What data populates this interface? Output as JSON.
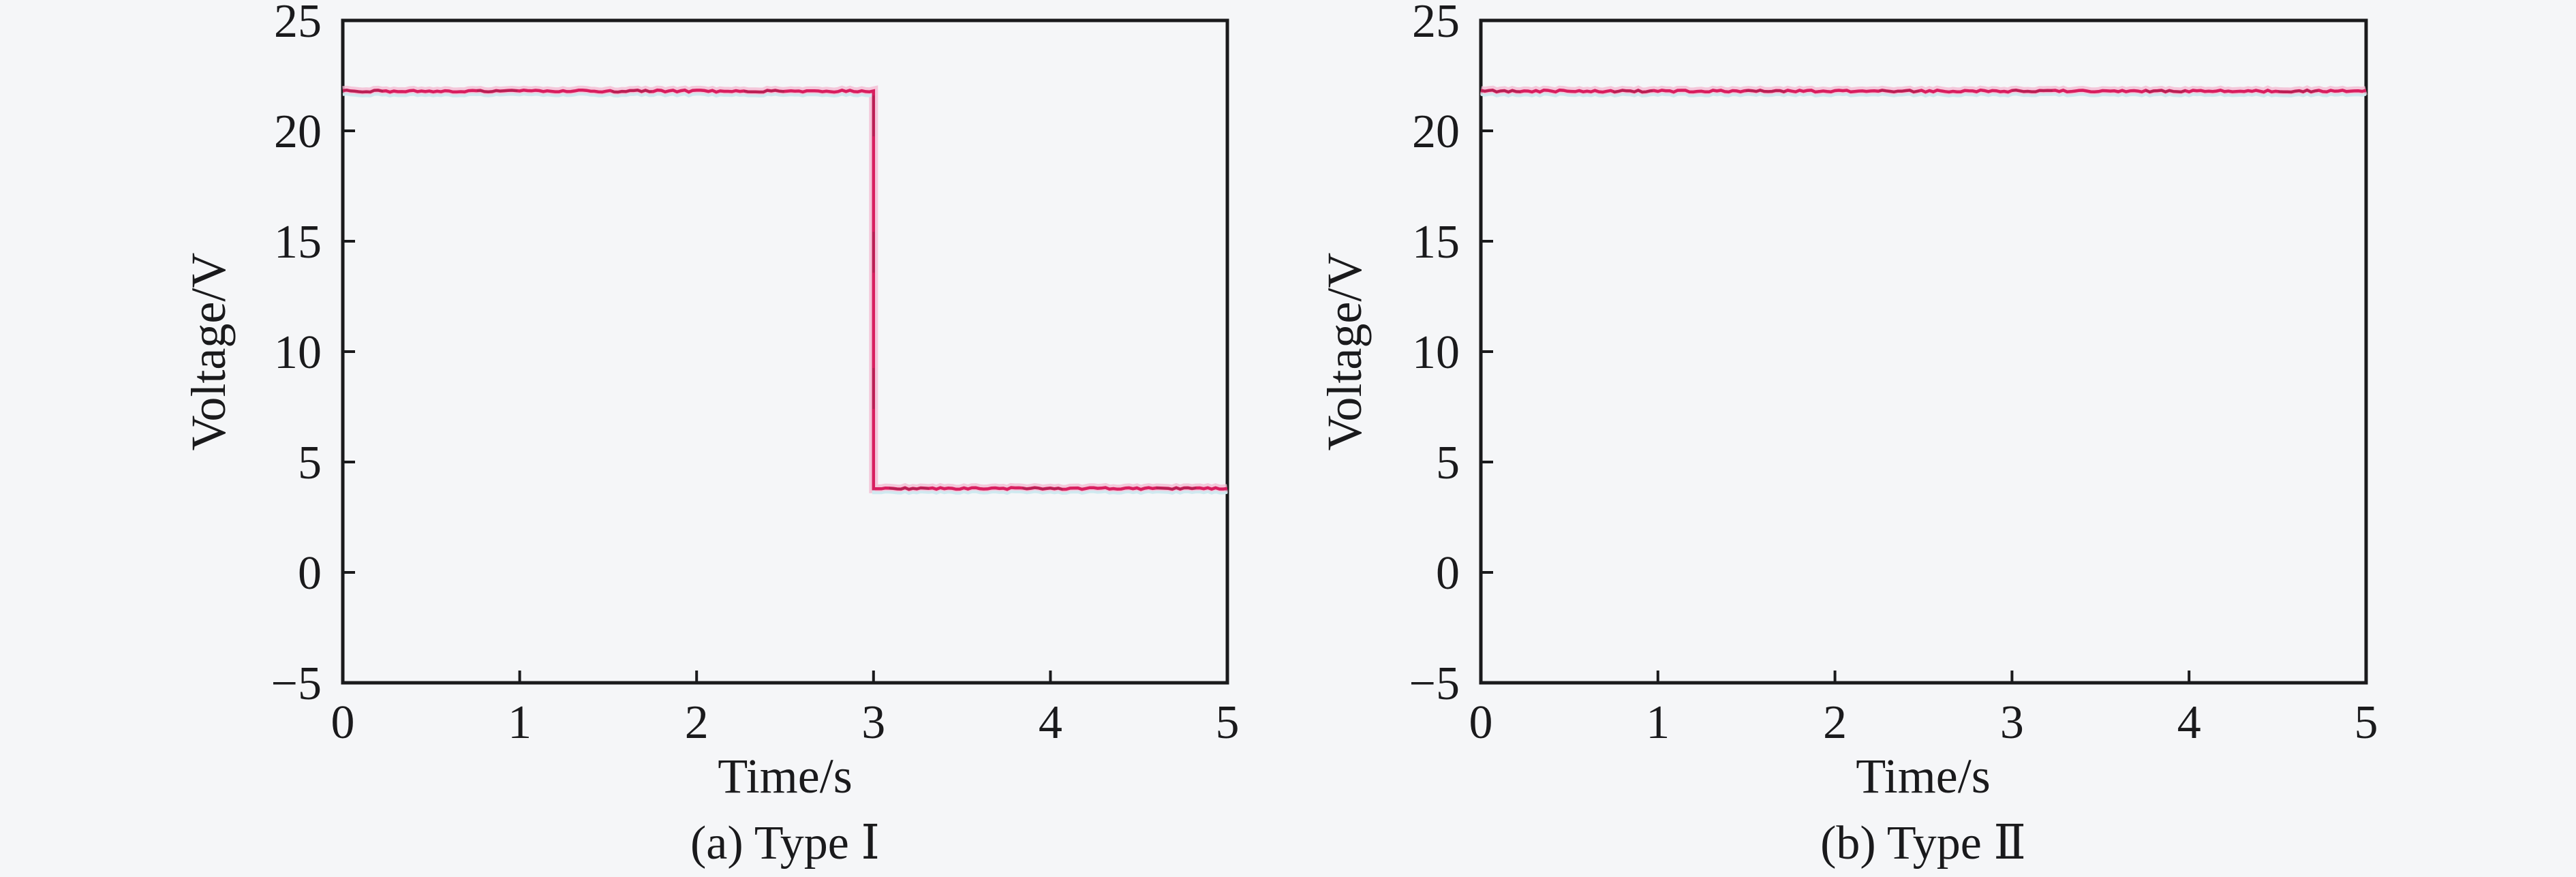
{
  "figure": {
    "background": "#f5f6f8",
    "frame_color": "#1a1a1c",
    "text_color": "#1a1a1c"
  },
  "chart_data": [
    {
      "id": "a",
      "type": "line",
      "title": "",
      "caption": "(a) Type Ⅰ",
      "xlabel": "Time/s",
      "ylabel": "Voltage/V",
      "xlim": [
        0,
        5
      ],
      "ylim": [
        -5,
        25
      ],
      "xticks": [
        0,
        1,
        2,
        3,
        4,
        5
      ],
      "xtick_labels": [
        "0",
        "1",
        "2",
        "3",
        "4",
        "5"
      ],
      "yticks": [
        -5,
        0,
        5,
        10,
        15,
        20,
        25
      ],
      "ytick_labels": [
        "−5",
        "0",
        "5",
        "10",
        "15",
        "20",
        "25"
      ],
      "grid": false,
      "legend": "none",
      "series": [
        {
          "name": "voltage",
          "color": "#d81e5f",
          "halo_color": "#f4bcd2",
          "underglow_color": "#cdeaf0",
          "overlay_color": "#8e2548",
          "points": [
            [
              0,
              21.8
            ],
            [
              3,
              21.8
            ],
            [
              3,
              3.8
            ],
            [
              5,
              3.8
            ]
          ]
        }
      ]
    },
    {
      "id": "b",
      "type": "line",
      "title": "",
      "caption": "(b) Type Ⅱ",
      "xlabel": "Time/s",
      "ylabel": "Voltage/V",
      "xlim": [
        0,
        5
      ],
      "ylim": [
        -5,
        25
      ],
      "xticks": [
        0,
        1,
        2,
        3,
        4,
        5
      ],
      "xtick_labels": [
        "0",
        "1",
        "2",
        "3",
        "4",
        "5"
      ],
      "yticks": [
        -5,
        0,
        5,
        10,
        15,
        20,
        25
      ],
      "ytick_labels": [
        "−5",
        "0",
        "5",
        "10",
        "15",
        "20",
        "25"
      ],
      "grid": false,
      "legend": "none",
      "series": [
        {
          "name": "voltage",
          "color": "#d81e5f",
          "halo_color": "#f4bcd2",
          "underglow_color": "#cdeaf0",
          "overlay_color": "#8e2548",
          "points": [
            [
              0,
              21.8
            ],
            [
              5,
              21.8
            ]
          ]
        }
      ]
    }
  ]
}
